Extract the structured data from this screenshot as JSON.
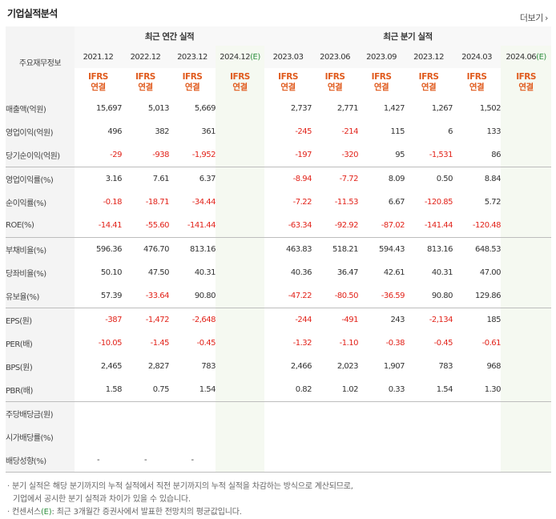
{
  "header": {
    "title": "기업실적분석",
    "more_label": "더보기",
    "more_icon": "chevron-right-icon"
  },
  "table": {
    "corner_label": "주요재무정보",
    "annual_group_label": "최근 연간 실적",
    "quarter_group_label": "최근 분기 실적",
    "annual_periods": [
      "2021.12",
      "2022.12",
      "2023.12"
    ],
    "annual_estimate": {
      "period": "2024.12",
      "estimate_mark": "(E)"
    },
    "quarter_periods": [
      "2023.03",
      "2023.06",
      "2023.09",
      "2023.12",
      "2024.03"
    ],
    "quarter_estimate": {
      "period": "2024.06",
      "estimate_mark": "(E)"
    },
    "accounting": {
      "line1": "IFRS",
      "line2": "연결"
    },
    "rows": [
      {
        "label": "매출액(억원)",
        "annual": [
          "15,697",
          "5,013",
          "5,669",
          ""
        ],
        "quarter": [
          "2,737",
          "2,771",
          "1,427",
          "1,267",
          "1,502",
          ""
        ]
      },
      {
        "label": "영업이익(억원)",
        "annual": [
          "496",
          "382",
          "361",
          ""
        ],
        "quarter": [
          "-245",
          "-214",
          "115",
          "6",
          "133",
          ""
        ]
      },
      {
        "label": "당기순이익(억원)",
        "annual": [
          "-29",
          "-938",
          "-1,952",
          ""
        ],
        "quarter": [
          "-197",
          "-320",
          "95",
          "-1,531",
          "86",
          ""
        ]
      },
      {
        "label": "영업이익률(%)",
        "annual": [
          "3.16",
          "7.61",
          "6.37",
          ""
        ],
        "quarter": [
          "-8.94",
          "-7.72",
          "8.09",
          "0.50",
          "8.84",
          ""
        ]
      },
      {
        "label": "순이익률(%)",
        "annual": [
          "-0.18",
          "-18.71",
          "-34.44",
          ""
        ],
        "quarter": [
          "-7.22",
          "-11.53",
          "6.67",
          "-120.85",
          "5.72",
          ""
        ]
      },
      {
        "label": "ROE(%)",
        "annual": [
          "-14.41",
          "-55.60",
          "-141.44",
          ""
        ],
        "quarter": [
          "-63.34",
          "-92.92",
          "-87.02",
          "-141.44",
          "-120.48",
          ""
        ]
      },
      {
        "label": "부채비율(%)",
        "annual": [
          "596.36",
          "476.70",
          "813.16",
          ""
        ],
        "quarter": [
          "463.83",
          "518.21",
          "594.43",
          "813.16",
          "648.53",
          ""
        ]
      },
      {
        "label": "당좌비율(%)",
        "annual": [
          "50.10",
          "47.50",
          "40.31",
          ""
        ],
        "quarter": [
          "40.36",
          "36.47",
          "42.61",
          "40.31",
          "47.00",
          ""
        ]
      },
      {
        "label": "유보율(%)",
        "annual": [
          "57.39",
          "-33.64",
          "90.80",
          ""
        ],
        "quarter": [
          "-47.22",
          "-80.50",
          "-36.59",
          "90.80",
          "129.86",
          ""
        ]
      },
      {
        "label": "EPS(원)",
        "annual": [
          "-387",
          "-1,472",
          "-2,648",
          ""
        ],
        "quarter": [
          "-244",
          "-491",
          "243",
          "-2,134",
          "185",
          ""
        ]
      },
      {
        "label": "PER(배)",
        "annual": [
          "-10.05",
          "-1.45",
          "-0.45",
          ""
        ],
        "quarter": [
          "-1.32",
          "-1.10",
          "-0.38",
          "-0.45",
          "-0.61",
          ""
        ]
      },
      {
        "label": "BPS(원)",
        "annual": [
          "2,465",
          "2,827",
          "783",
          ""
        ],
        "quarter": [
          "2,466",
          "2,023",
          "1,907",
          "783",
          "968",
          ""
        ]
      },
      {
        "label": "PBR(배)",
        "annual": [
          "1.58",
          "0.75",
          "1.54",
          ""
        ],
        "quarter": [
          "0.82",
          "1.02",
          "0.33",
          "1.54",
          "1.30",
          ""
        ]
      },
      {
        "label": "주당배당금(원)",
        "annual": [
          "",
          "",
          "",
          ""
        ],
        "quarter": [
          "",
          "",
          "",
          "",
          "",
          ""
        ]
      },
      {
        "label": "시가배당률(%)",
        "annual": [
          "",
          "",
          "",
          ""
        ],
        "quarter": [
          "",
          "",
          "",
          "",
          "",
          ""
        ]
      },
      {
        "label": "배당성향(%)",
        "annual": [
          "-",
          "-",
          "-",
          ""
        ],
        "quarter": [
          "",
          "",
          "",
          "",
          "",
          ""
        ]
      }
    ]
  },
  "footnotes": {
    "line1": "· 분기 실적은 해당 분기까지의 누적 실적에서 직전 분기까지의 누적 실적을 차감하는 방식으로 계산되므로,",
    "line2": "기업에서 공시한 분기 실적과 차이가 있을 수 있습니다.",
    "line3_prefix": "· 컨센서스",
    "line3_mark": "(E)",
    "line3_suffix": ": 최근 3개월간 증권사에서 발표한 전망치의 평균값입니다."
  },
  "colors": {
    "negative": "#e2231a",
    "ifrs": "#e05b1e",
    "estimate_mark": "#2e8f3f",
    "estimate_bg": "#f5f9f1",
    "header_bg": "#f4f4f4"
  }
}
